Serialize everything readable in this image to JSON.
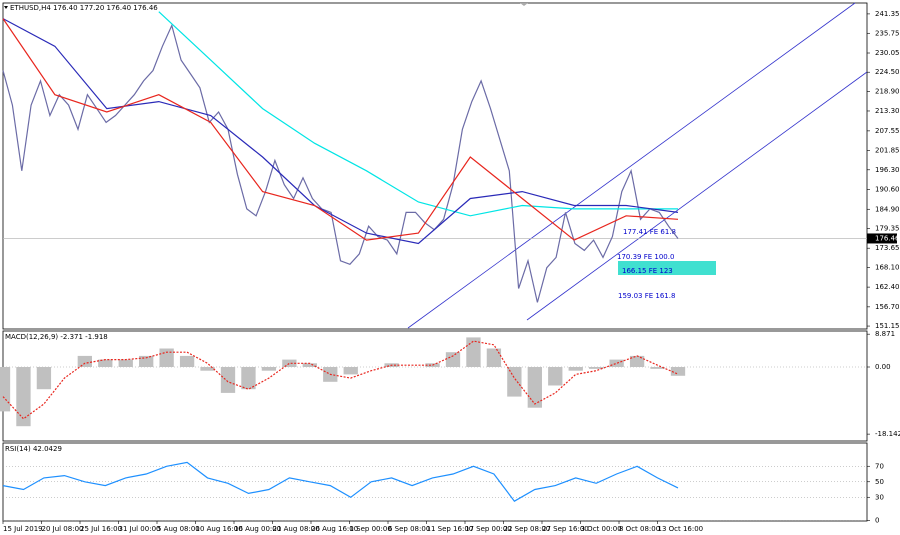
{
  "header": {
    "symbol_info": "ETHUSD,H4 176.40 177.20 176.40 176.46"
  },
  "x_axis_labels": [
    "15 Jul 2019",
    "20 Jul 08:00",
    "25 Jul 16:00",
    "31 Jul 00:00",
    "5 Aug 08:00",
    "10 Aug 16:00",
    "16 Aug 00:00",
    "21 Aug 08:00",
    "26 Aug 16:00",
    "1 Sep 00:00",
    "6 Sep 08:00",
    "11 Sep 16:00",
    "17 Sep 00:00",
    "22 Sep 08:00",
    "27 Sep 16:00",
    "3 Oct 00:00",
    "8 Oct 08:00",
    "13 Oct 16:00"
  ],
  "fib_labels": [
    "177.41  FE 61.8",
    "170.39   FE 100.0",
    "166.15   FE 123",
    "159.03   FE 161.8"
  ],
  "chart_data": [
    {
      "type": "line",
      "ylim": [
        150.3,
        244.5
      ],
      "yticks": [
        241.35,
        235.75,
        230.05,
        {
          "value": 224.5,
          "label": "224.50"
        },
        {
          "value": 218.9,
          "label": "218.90"
        },
        {
          "value": 213.3,
          "label": "213.30"
        },
        207.55,
        201.85,
        {
          "value": 196.3,
          "label": "196.30"
        },
        {
          "value": 190.6,
          "label": "190.60"
        },
        {
          "value": 184.9,
          "label": "184.90"
        },
        179.35,
        173.65,
        {
          "value": 168.1,
          "label": "168.10"
        },
        {
          "value": 162.4,
          "label": "162.40"
        },
        {
          "value": 156.7,
          "label": "156.70"
        },
        151.15
      ],
      "current_price": 176.46,
      "series": [
        {
          "color": "#6b6ba6",
          "values": [
            225,
            215,
            196,
            215,
            222,
            212,
            218,
            215,
            208,
            218,
            214,
            210,
            212,
            215,
            218,
            222,
            225,
            232,
            238,
            228,
            224,
            220,
            210,
            213,
            208,
            195,
            185,
            183,
            190,
            199,
            192,
            188,
            194,
            188,
            185,
            184,
            170,
            169,
            172,
            180,
            177,
            176,
            172,
            184,
            184,
            181,
            179,
            182,
            192,
            208,
            216,
            222,
            214,
            205,
            196,
            162,
            170,
            158,
            168,
            171,
            184,
            175,
            173,
            176,
            171,
            177,
            190,
            196,
            182,
            185,
            184,
            180,
            176.46
          ]
        },
        {
          "color": "#00e5e5",
          "values": [
            null,
            null,
            null,
            242,
            228,
            214,
            204,
            196,
            187,
            183,
            186,
            185,
            185,
            185
          ]
        },
        {
          "color": "#2a2ab8",
          "values": [
            240,
            232,
            214,
            216,
            212,
            200,
            186,
            178,
            175,
            188,
            190,
            186,
            186,
            184
          ]
        },
        {
          "color": "#e8261e",
          "values": [
            240,
            218,
            213,
            218,
            210,
            190,
            186,
            176,
            178,
            200,
            188,
            176,
            183,
            182
          ]
        }
      ]
    },
    {
      "type": "bar",
      "title": "MACD(12,26,9) -2.371 -1.918",
      "ylim": [
        -20,
        9.73
      ],
      "yticks": [
        8.871,
        {
          "value": 0,
          "label": "0.00"
        },
        -18.142
      ],
      "values": [
        -12,
        -16,
        -6,
        0,
        3,
        2,
        2,
        3,
        5,
        3,
        -1,
        -7,
        -6,
        -1,
        2,
        1,
        -4,
        -2,
        0,
        1,
        0,
        1,
        4,
        8,
        5,
        -8,
        -11,
        -5,
        -1,
        -0.5,
        2,
        3,
        -0.5,
        -2.371
      ],
      "color": "#c0c0c0",
      "signal": {
        "color": "#e8261e",
        "values": [
          -8,
          -14,
          -10,
          -3,
          1,
          2,
          2,
          2.5,
          4,
          4,
          1,
          -4,
          -6,
          -3,
          1,
          1,
          -2,
          -3,
          -1,
          0.5,
          0.5,
          0.5,
          3,
          7,
          6,
          -3,
          -10,
          -7,
          -2,
          -1,
          1,
          3,
          0.5,
          -1.918
        ]
      }
    },
    {
      "type": "line",
      "title": "RSI(14) 42.0429",
      "ylim": [
        -0.6,
        100
      ],
      "yticks": [
        70,
        50,
        30,
        0
      ],
      "grid": true,
      "series": [
        {
          "color": "#1e90ff",
          "values": [
            45,
            40,
            55,
            58,
            50,
            45,
            55,
            60,
            70,
            75,
            55,
            48,
            35,
            40,
            55,
            50,
            45,
            30,
            50,
            55,
            45,
            55,
            60,
            70,
            60,
            25,
            40,
            45,
            55,
            48,
            60,
            70,
            55,
            42.0429
          ]
        }
      ]
    }
  ]
}
